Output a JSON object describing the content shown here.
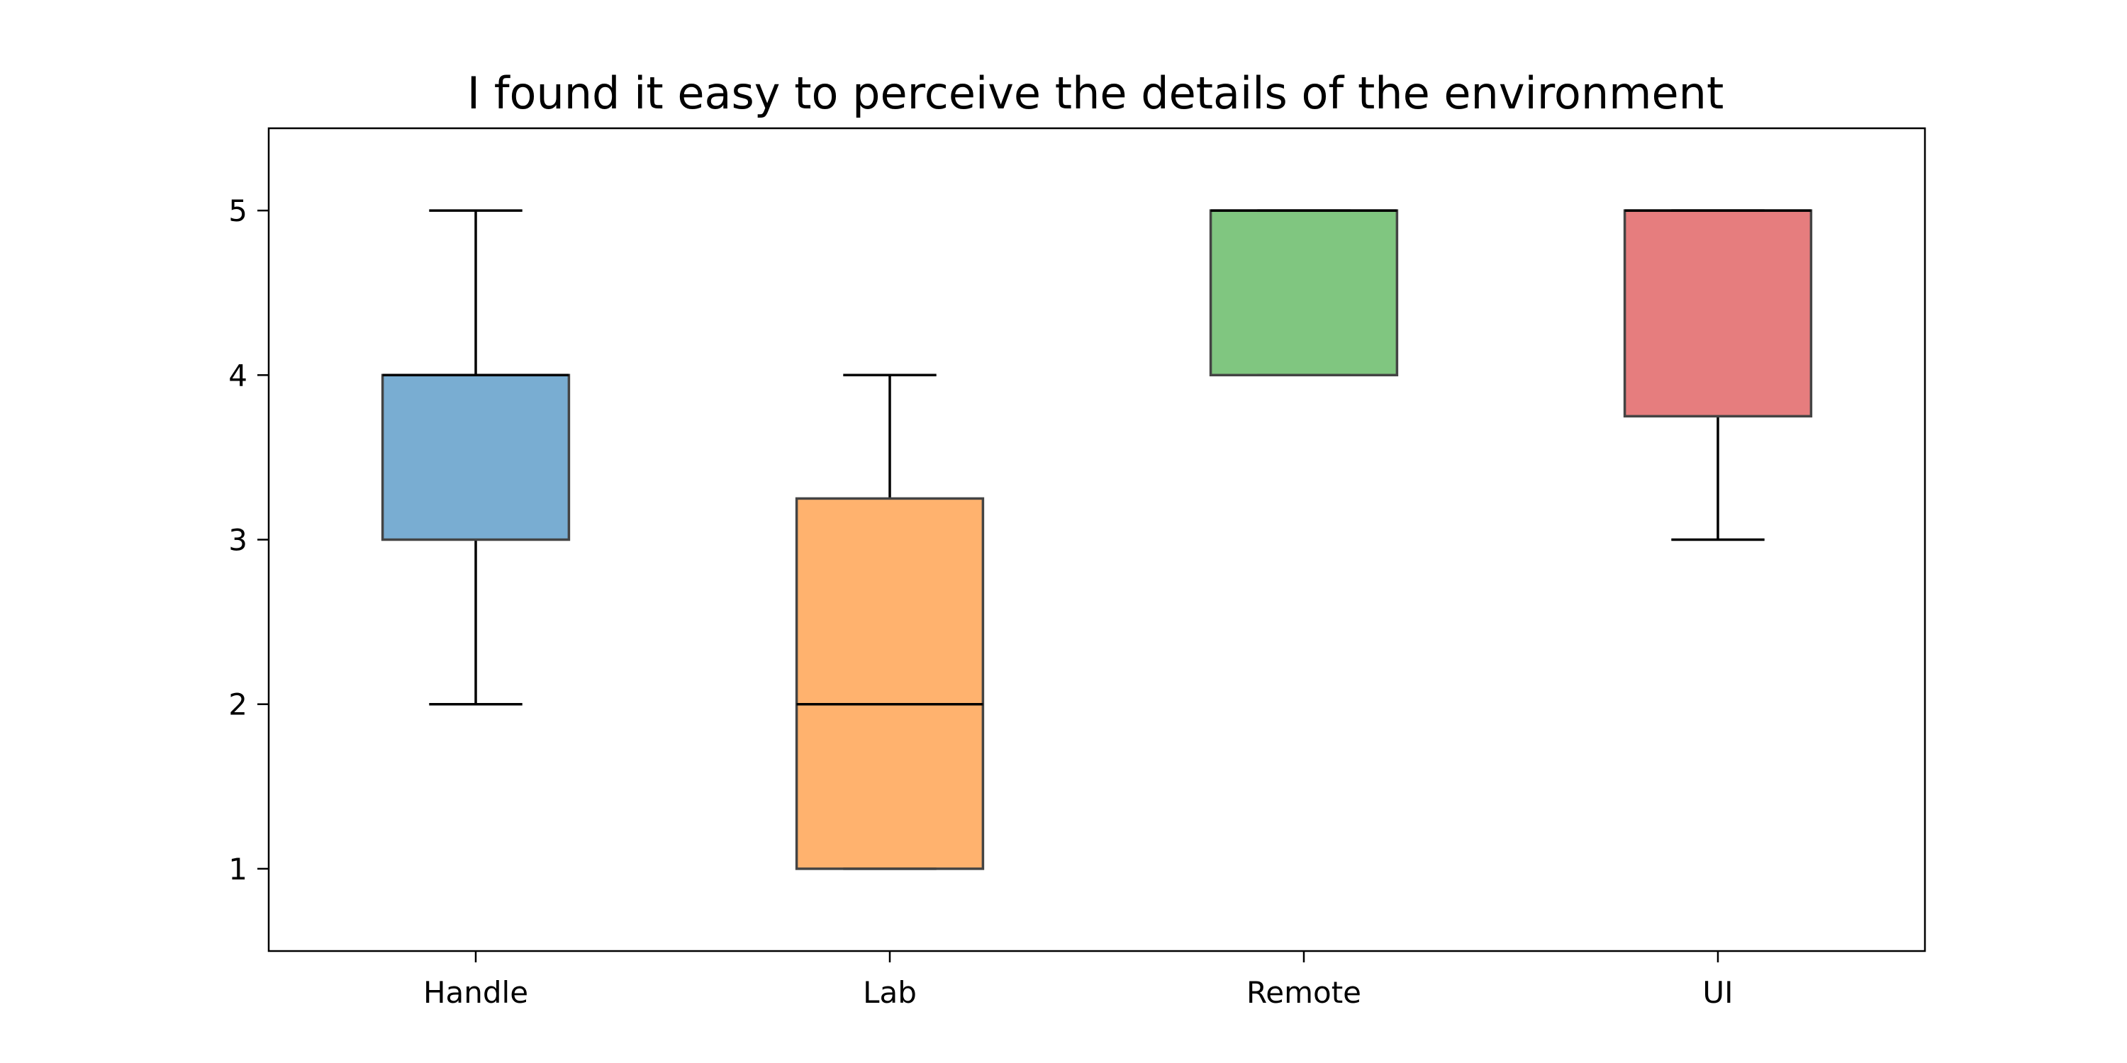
{
  "chart_data": {
    "type": "box",
    "title": "I found it easy to perceive the details of the environment",
    "xlabel": "",
    "ylabel": "",
    "ylim": [
      0.5,
      5.5
    ],
    "yticks": [
      1,
      2,
      3,
      4,
      5
    ],
    "grid": false,
    "categories": [
      "Handle",
      "Lab",
      "Remote",
      "UI"
    ],
    "boxes": [
      {
        "category": "Handle",
        "whisker_low": 2,
        "q1": 3,
        "median": 4,
        "q3": 4,
        "whisker_high": 5,
        "color": "#1f77b4"
      },
      {
        "category": "Lab",
        "whisker_low": 1,
        "q1": 1,
        "median": 2,
        "q3": 3.25,
        "whisker_high": 4,
        "color": "#ff7f0e"
      },
      {
        "category": "Remote",
        "whisker_low": 4,
        "q1": 4,
        "median": 5,
        "q3": 5,
        "whisker_high": 5,
        "color": "#2ca02c"
      },
      {
        "category": "UI",
        "whisker_low": 3,
        "q1": 3.75,
        "median": 5,
        "q3": 5,
        "whisker_high": 5,
        "color": "#d62728"
      }
    ]
  }
}
